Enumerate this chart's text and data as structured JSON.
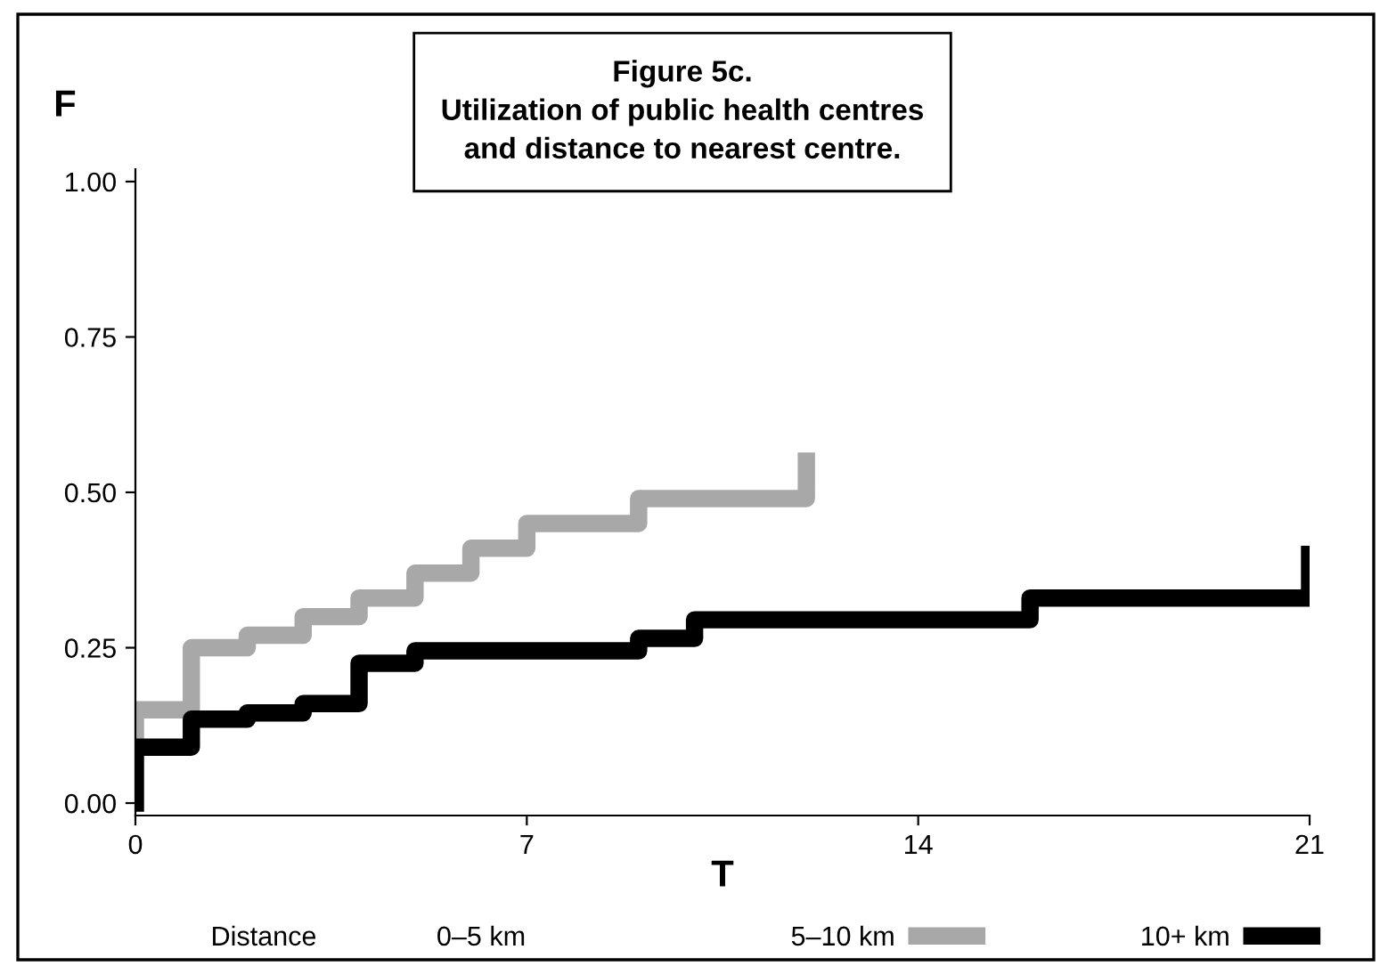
{
  "chart_data": {
    "type": "step",
    "title": "Figure 5c.\nUtilization of public health centres\nand distance to nearest centre.",
    "xlabel": "T",
    "ylabel": "F",
    "legend_title": "Distance",
    "legend": "bottom",
    "grid": false,
    "xlim": [
      0,
      21
    ],
    "xticks": [
      0,
      7,
      14,
      21
    ],
    "ylim": [
      -0.02,
      1.02
    ],
    "yticks": [
      {
        "value": 0,
        "label": "0.00"
      },
      {
        "value": 0.25,
        "label": "0.25"
      },
      {
        "value": 0.5,
        "label": "0.50"
      },
      {
        "value": 0.75,
        "label": "0.75"
      },
      {
        "value": 1,
        "label": "1.00"
      }
    ],
    "annotations": [
      "0–5 km"
    ],
    "series": [
      {
        "name": "5–10 km",
        "color": "#a8a8a8",
        "x": [
          0,
          0,
          1,
          2,
          3,
          4,
          5,
          6,
          7,
          9,
          12,
          12
        ],
        "values": [
          0.1,
          0.15,
          0.25,
          0.27,
          0.3,
          0.33,
          0.37,
          0.41,
          0.45,
          0.49,
          0.49,
          0.55
        ]
      },
      {
        "name": "10+ km",
        "color": "#000000",
        "x": [
          0,
          0,
          1,
          2,
          3,
          4,
          5,
          9,
          10,
          16,
          21,
          21
        ],
        "values": [
          0,
          0.09,
          0.135,
          0.145,
          0.16,
          0.225,
          0.245,
          0.265,
          0.295,
          0.33,
          0.33,
          0.4
        ]
      }
    ]
  }
}
